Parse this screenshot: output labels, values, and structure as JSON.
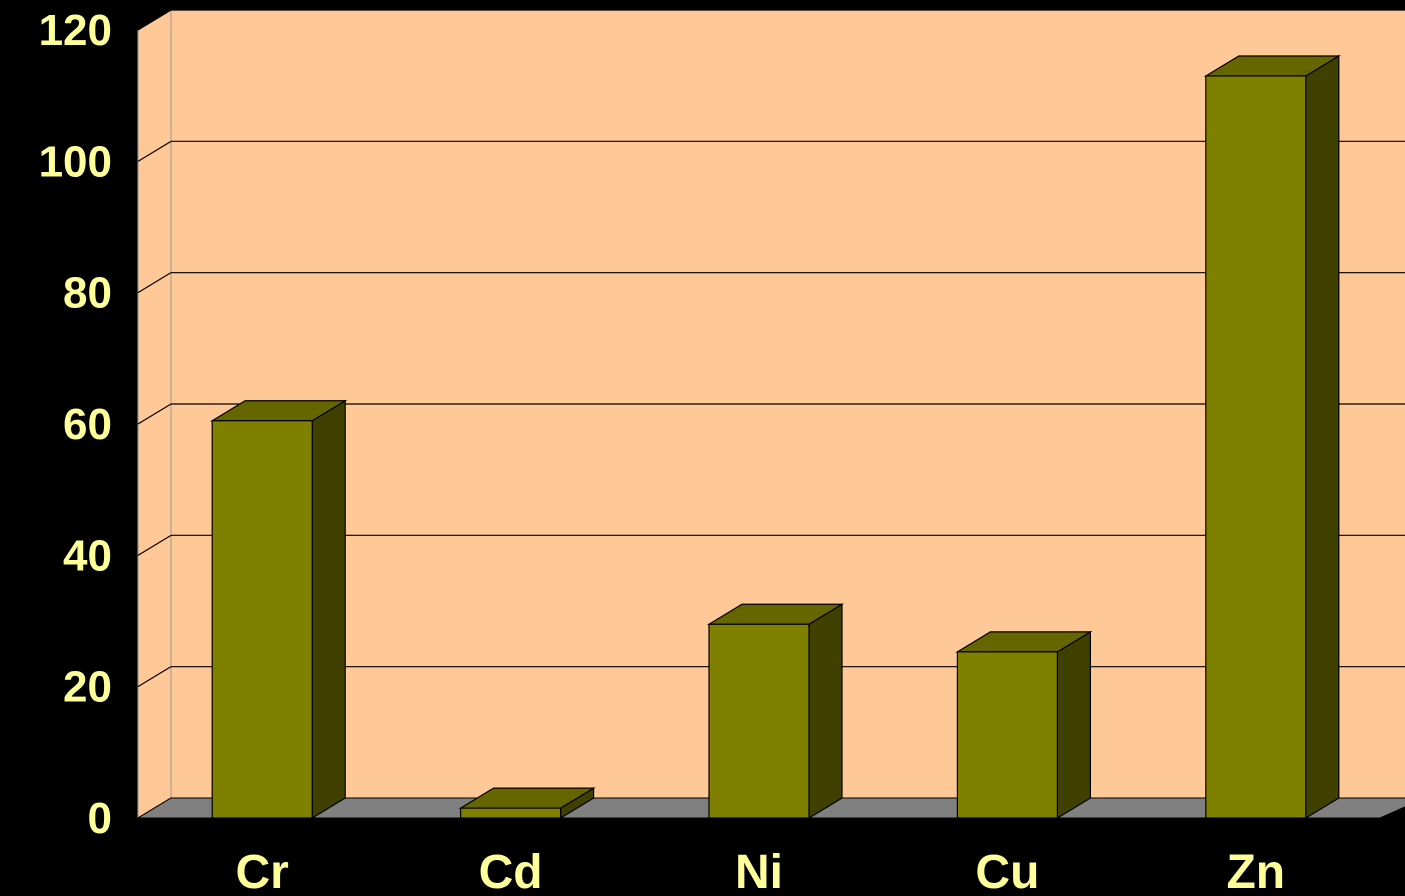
{
  "chart_data": {
    "type": "bar",
    "title": "",
    "xlabel": "",
    "ylabel": "",
    "categories": [
      "Cr",
      "Cd",
      "Ni",
      "Cu",
      "Zn"
    ],
    "values": [
      60.5,
      1.5,
      29.5,
      25.3,
      113
    ],
    "ylim": [
      0,
      120
    ],
    "yticks": [
      "0",
      "20",
      "40",
      "60",
      "80",
      "100",
      "120"
    ],
    "grid": true,
    "legend": "none",
    "style": "3d",
    "colors": {
      "background": "#000000",
      "plot_wall": "#ffc896",
      "floor": "#808080",
      "bar_front": "#808000",
      "bar_top": "#666600",
      "bar_side": "#404000",
      "label": "#ffff99",
      "gridline": "#000000"
    }
  }
}
